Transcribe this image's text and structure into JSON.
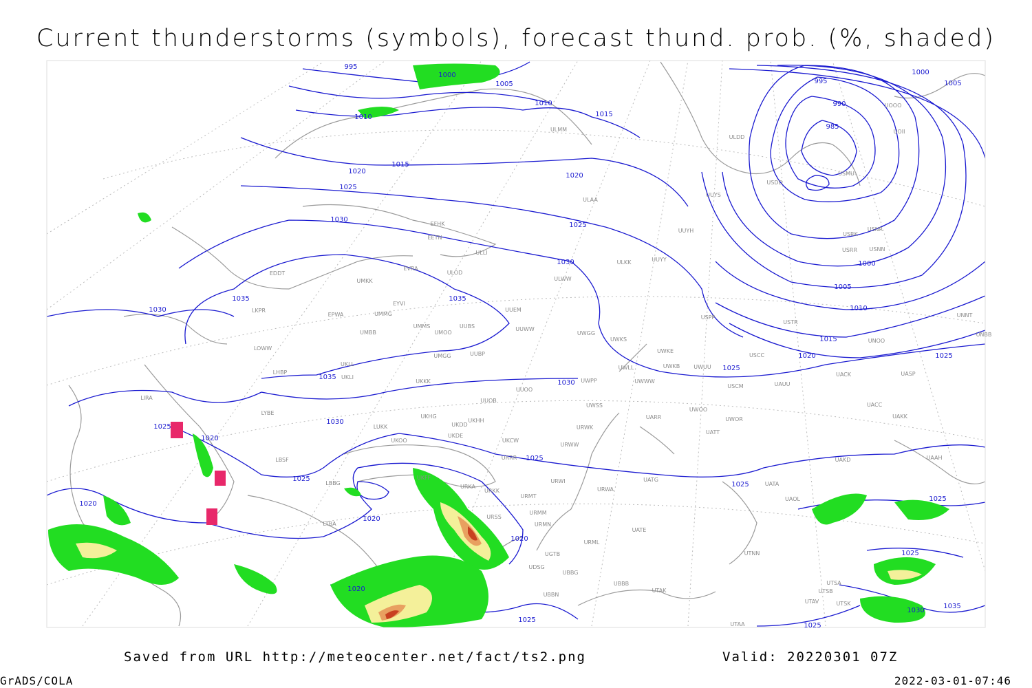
{
  "header": {
    "title": "Current thunderstorms (symbols), forecast thund. prob. (%, shaded)"
  },
  "footer": {
    "source": "Saved from URL http://meteocenter.net/fact/ts2.png",
    "valid": "Valid: 20220301 07Z",
    "software": "GrADS/COLA",
    "timestamp": "2022-03-01-07:46"
  },
  "isobar_labels": [
    995,
    1000,
    1005,
    1010,
    1010,
    1015,
    1015,
    1020,
    1020,
    1025,
    1025,
    1030,
    1030,
    1035,
    1035,
    1030,
    1035,
    1030,
    1030,
    1025,
    1020,
    1025,
    1025,
    1025,
    1020,
    1020,
    1020,
    1020,
    1025,
    1025,
    995,
    990,
    985,
    1000,
    1005,
    1000,
    1005,
    1010,
    1015,
    1020,
    1025,
    1025,
    1025,
    1025,
    1030,
    1035
  ],
  "stations": [
    "EFHK",
    "EETN",
    "EVRA",
    "ULLI",
    "ULOD",
    "EYVI",
    "UMKK",
    "EPWA",
    "UMMG",
    "UMMS",
    "UMOO",
    "UUBS",
    "UUEM",
    "UUWW",
    "UMBB",
    "EDDT",
    "LKPR",
    "LOWW",
    "LHBP",
    "UKLL",
    "UKLI",
    "UMGG",
    "UUBP",
    "UKKK",
    "UUOO",
    "UUOB",
    "UKHG",
    "UKDD",
    "UKHH",
    "UKDE",
    "LUKK",
    "UKOO",
    "UKCW",
    "URRR",
    "LYBE",
    "LBSF",
    "LIRA",
    "LBBG",
    "LTBA",
    "UKFF",
    "URKA",
    "URKK",
    "URMT",
    "URSS",
    "URMM",
    "URMN",
    "UGTB",
    "UDSG",
    "UBBG",
    "UBBN",
    "URWI",
    "URWA",
    "UATG",
    "UATE",
    "URWW",
    "URWK",
    "UWSS",
    "UWPP",
    "UWWW",
    "UWLL",
    "UWKB",
    "UWKE",
    "UWUU",
    "UWGG",
    "UWKS",
    "UUYY",
    "ULKK",
    "ULWW",
    "ULAA",
    "ULMM",
    "ULDD",
    "UUYS",
    "UUYH",
    "USPP",
    "USTR",
    "USDD",
    "USMU",
    "USRK",
    "USNR",
    "USRR",
    "USNN",
    "UOOO",
    "UOII",
    "UNNT",
    "UNBB",
    "UNOO",
    "USCC",
    "USCM",
    "UAUU",
    "UACK",
    "UASP",
    "UACC",
    "UAKK",
    "UWOO",
    "UWOR",
    "UATT",
    "UARR",
    "UAKD",
    "UATA",
    "UAOL",
    "UAAH",
    "UTNN",
    "UTAA",
    "UTAK",
    "UBBB",
    "URML",
    "UTSA",
    "UTSB",
    "UTAV",
    "UTSK"
  ]
}
